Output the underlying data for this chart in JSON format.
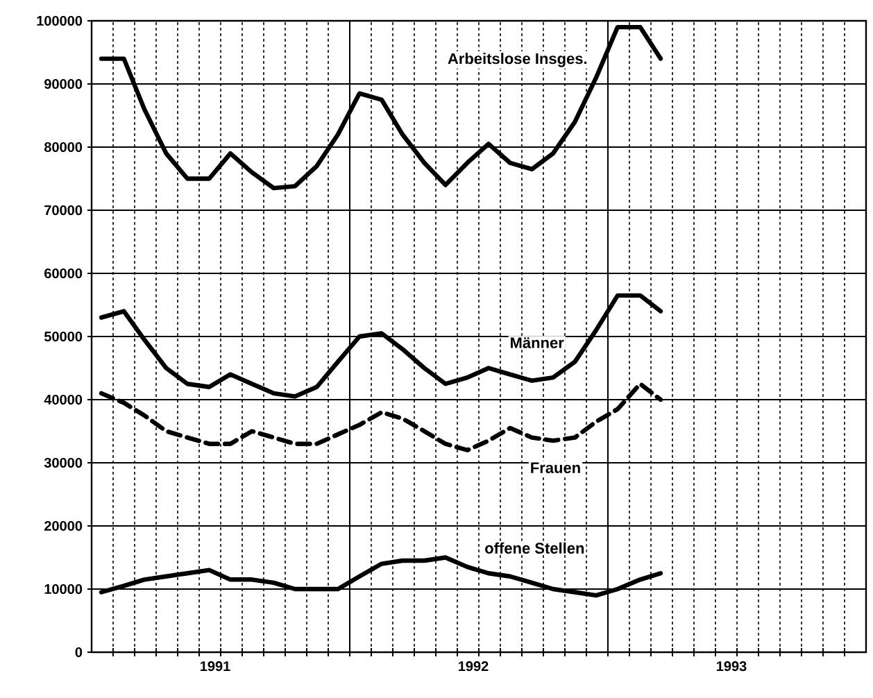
{
  "chart_data": {
    "type": "line",
    "x": [
      "1991-01-15",
      "1991-02-15",
      "1991-03-15",
      "1991-04-15",
      "1991-05-15",
      "1991-06-15",
      "1991-07-15",
      "1991-08-15",
      "1991-09-15",
      "1991-10-15",
      "1991-11-15",
      "1991-12-15",
      "1992-01-15",
      "1992-02-15",
      "1992-03-15",
      "1992-04-15",
      "1992-05-15",
      "1992-06-15",
      "1992-07-15",
      "1992-08-15",
      "1992-09-15",
      "1992-10-15",
      "1992-11-15",
      "1992-12-15",
      "1993-01-15",
      "1993-02-15",
      "1993-03-15"
    ],
    "series": [
      {
        "name": "Arbeitslose Insges.",
        "color": "#000000",
        "line_style": "solid",
        "values": [
          94000,
          94000,
          86000,
          79000,
          75000,
          75000,
          79000,
          76000,
          73500,
          73800,
          77000,
          82000,
          88500,
          87500,
          82000,
          77500,
          74000,
          77500,
          80500,
          77500,
          76500,
          79000,
          84000,
          91000,
          99000,
          99000,
          94000
        ]
      },
      {
        "name": "Männer",
        "color": "#000000",
        "line_style": "solid",
        "values": [
          53000,
          54000,
          49500,
          45000,
          42500,
          42000,
          44000,
          42500,
          41000,
          40500,
          42000,
          46000,
          50000,
          50500,
          48000,
          45000,
          42500,
          43500,
          45000,
          44000,
          43000,
          43500,
          46000,
          51000,
          56500,
          56500,
          54000
        ]
      },
      {
        "name": "Frauen",
        "color": "#000000",
        "line_style": "dashed",
        "values": [
          41000,
          39500,
          37500,
          35000,
          34000,
          33000,
          33000,
          35000,
          34000,
          33000,
          33000,
          34500,
          36000,
          38000,
          37000,
          35000,
          33000,
          32000,
          33500,
          35500,
          34000,
          33500,
          34000,
          36500,
          38500,
          42500,
          40000
        ]
      },
      {
        "name": "offene Stellen",
        "color": "#000000",
        "line_style": "solid",
        "values": [
          9500,
          10500,
          11500,
          12000,
          12500,
          13000,
          11500,
          11500,
          11000,
          10000,
          10000,
          10000,
          12000,
          14000,
          14500,
          14500,
          15000,
          13500,
          12500,
          12000,
          11000,
          10000,
          9500,
          9000,
          10000,
          11500,
          12500
        ]
      }
    ],
    "xlim": [
      "1991-01",
      "1994-01"
    ],
    "xticks": [
      {
        "value": "1991-02",
        "label": null
      },
      {
        "value": "1991-03",
        "label": null
      },
      {
        "value": "1991-04",
        "label": null
      },
      {
        "value": "1991-05",
        "label": null
      },
      {
        "value": "1991-06",
        "label": null
      },
      {
        "value": "1991-07",
        "label": "1991"
      },
      {
        "value": "1991-08",
        "label": null
      },
      {
        "value": "1991-09",
        "label": null
      },
      {
        "value": "1991-10",
        "label": null
      },
      {
        "value": "1991-11",
        "label": null
      },
      {
        "value": "1991-12",
        "label": null
      },
      {
        "value": "1992-01",
        "label": null
      },
      {
        "value": "1992-02",
        "label": null
      },
      {
        "value": "1992-03",
        "label": null
      },
      {
        "value": "1992-04",
        "label": null
      },
      {
        "value": "1992-05",
        "label": null
      },
      {
        "value": "1992-06",
        "label": null
      },
      {
        "value": "1992-07",
        "label": "1992"
      },
      {
        "value": "1992-08",
        "label": null
      },
      {
        "value": "1992-09",
        "label": null
      },
      {
        "value": "1992-10",
        "label": null
      },
      {
        "value": "1992-11",
        "label": null
      },
      {
        "value": "1992-12",
        "label": null
      },
      {
        "value": "1993-01",
        "label": null
      },
      {
        "value": "1993-02",
        "label": null
      },
      {
        "value": "1993-03",
        "label": null
      },
      {
        "value": "1993-04",
        "label": null
      },
      {
        "value": "1993-05",
        "label": null
      },
      {
        "value": "1993-06",
        "label": null
      },
      {
        "value": "1993-07",
        "label": "1993"
      },
      {
        "value": "1993-08",
        "label": null
      },
      {
        "value": "1993-09",
        "label": null
      },
      {
        "value": "1993-10",
        "label": null
      },
      {
        "value": "1993-11",
        "label": null
      },
      {
        "value": "1993-12",
        "label": null
      }
    ],
    "ylim": [
      0,
      100000
    ],
    "yticks": [
      0,
      10000,
      20000,
      30000,
      40000,
      50000,
      60000,
      70000,
      80000,
      90000,
      100000
    ],
    "grid": true,
    "legend": false,
    "marker": "none"
  }
}
